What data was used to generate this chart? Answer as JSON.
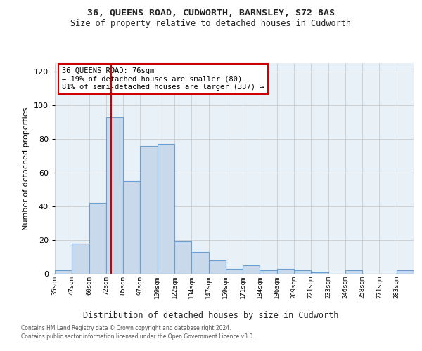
{
  "title": "36, QUEENS ROAD, CUDWORTH, BARNSLEY, S72 8AS",
  "subtitle": "Size of property relative to detached houses in Cudworth",
  "xlabel": "Distribution of detached houses by size in Cudworth",
  "ylabel": "Number of detached properties",
  "bar_values": [
    2,
    18,
    42,
    93,
    55,
    76,
    77,
    19,
    13,
    8,
    3,
    5,
    2,
    3,
    2,
    1,
    0,
    2,
    0,
    0,
    2
  ],
  "bin_labels": [
    "35sqm",
    "47sqm",
    "60sqm",
    "72sqm",
    "85sqm",
    "97sqm",
    "109sqm",
    "122sqm",
    "134sqm",
    "147sqm",
    "159sqm",
    "171sqm",
    "184sqm",
    "196sqm",
    "209sqm",
    "221sqm",
    "233sqm",
    "246sqm",
    "258sqm",
    "271sqm",
    "283sqm"
  ],
  "bar_color": "#c9d9ec",
  "bar_edge_color": "#6a9fd0",
  "grid_color": "#cccccc",
  "bg_color": "#e8f0f8",
  "vline_color": "#cc0000",
  "annotation_text": "36 QUEENS ROAD: 76sqm\n← 19% of detached houses are smaller (80)\n81% of semi-detached houses are larger (337) →",
  "annotation_box_color": "#cc0000",
  "ylim": [
    0,
    125
  ],
  "yticks": [
    0,
    20,
    40,
    60,
    80,
    100,
    120
  ],
  "footer_line1": "Contains HM Land Registry data © Crown copyright and database right 2024.",
  "footer_line2": "Contains public sector information licensed under the Open Government Licence v3.0."
}
